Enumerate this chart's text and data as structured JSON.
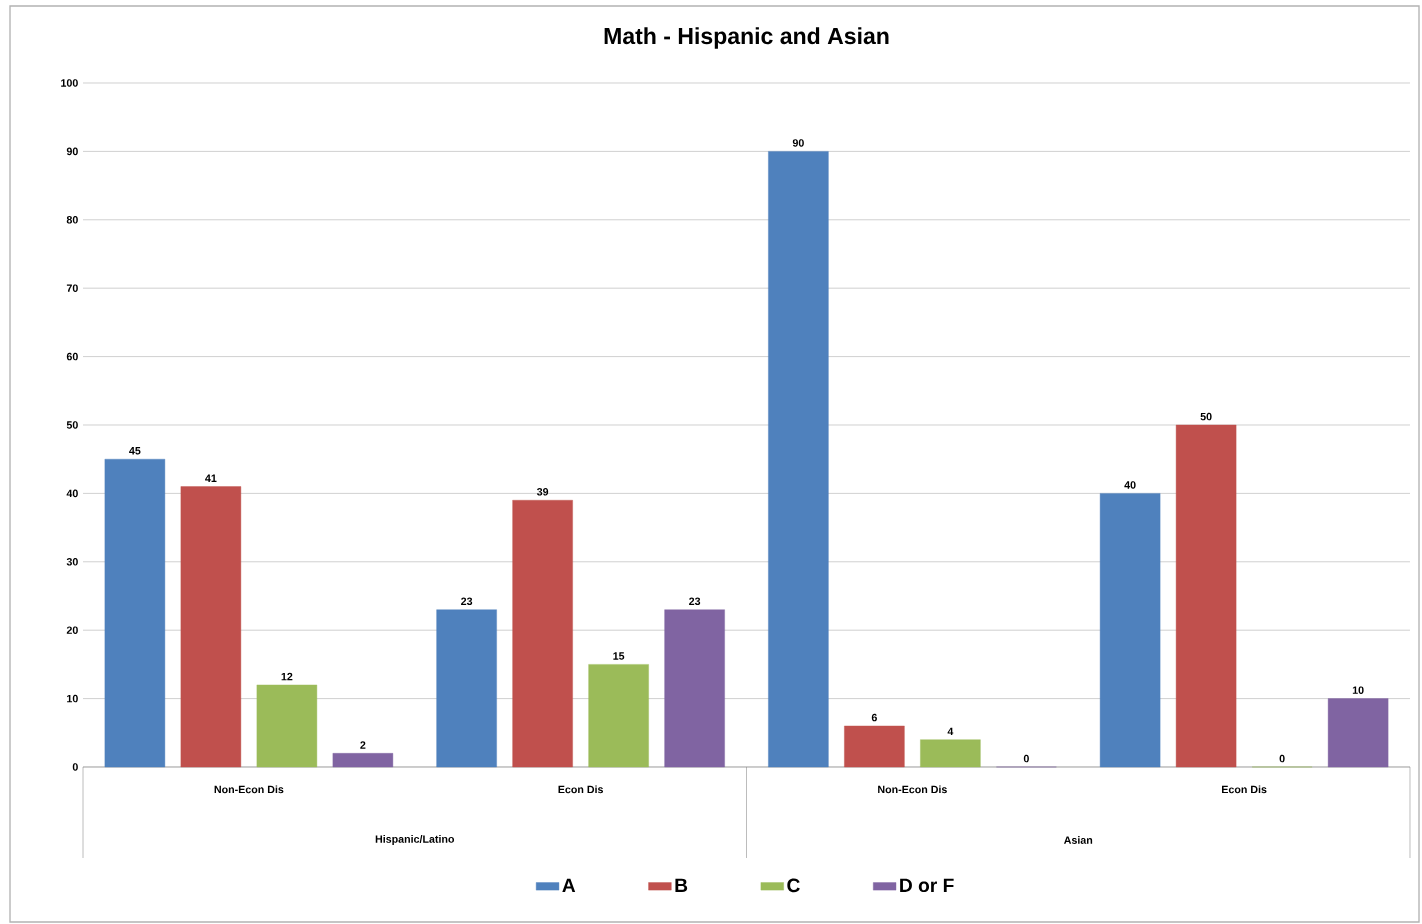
{
  "chart_data": {
    "type": "bar",
    "title": "Math - Hispanic and Asian",
    "categories": [
      "Non-Econ Dis",
      "Econ Dis",
      "Non-Econ Dis",
      "Econ Dis"
    ],
    "annotations": [
      "Hispanic/Latino",
      "Asian"
    ],
    "series": [
      {
        "name": "A",
        "color": "#4f81bd",
        "values": [
          45,
          23,
          90,
          40
        ]
      },
      {
        "name": "B",
        "color": "#c0504d",
        "values": [
          41,
          39,
          6,
          50
        ]
      },
      {
        "name": "C",
        "color": "#9bbb59",
        "values": [
          12,
          15,
          4,
          0
        ]
      },
      {
        "name": "D or F",
        "color": "#8064a2",
        "values": [
          2,
          23,
          0,
          10
        ]
      }
    ],
    "ylim": [
      0,
      100
    ],
    "yticks": [
      0,
      10,
      20,
      30,
      40,
      50,
      60,
      70,
      80,
      90,
      100
    ],
    "grid": "y",
    "legend": "bottom",
    "data_labels": true
  }
}
